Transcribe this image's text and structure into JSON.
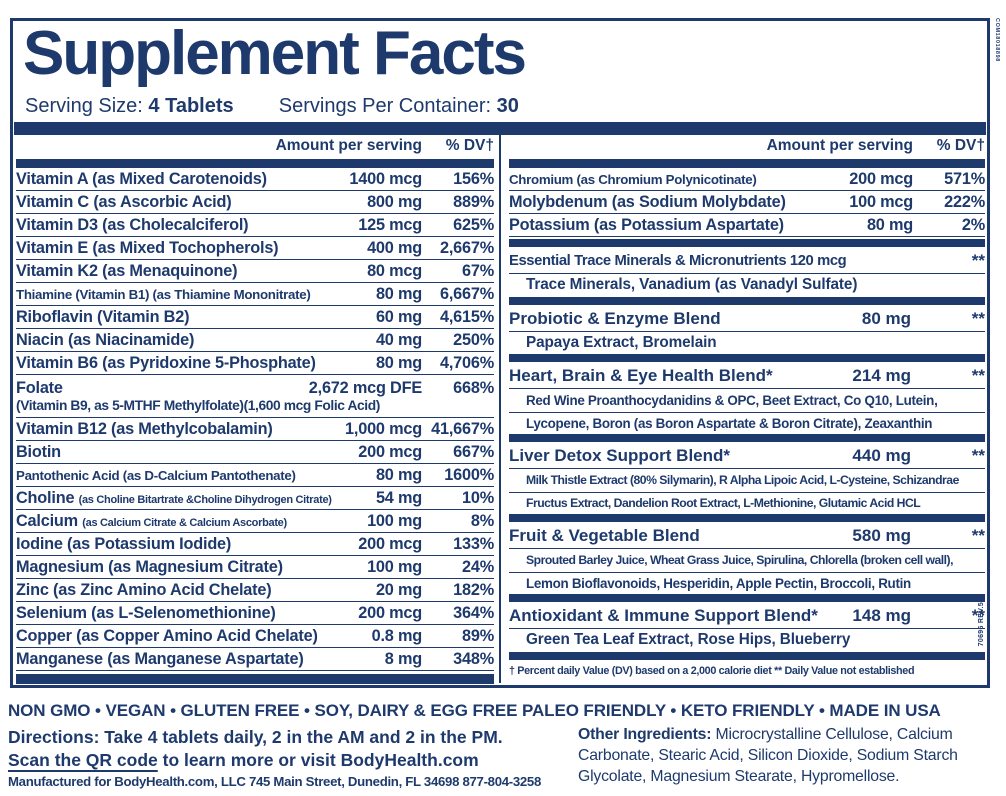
{
  "colors": {
    "navy": "#1e3a6d",
    "background": "#ffffff"
  },
  "header": {
    "title": "Supplement Facts",
    "serving_size_label": "Serving Size:",
    "serving_size_value": "4 Tablets",
    "servings_label": "Servings Per Container:",
    "servings_value": "30"
  },
  "table": {
    "amount_header": "Amount per serving",
    "dv_header": "% DV†",
    "left_rows": [
      {
        "name": "Vitamin A (as Mixed Carotenoids)",
        "amount": "1400 mcg",
        "dv": "156%"
      },
      {
        "name": "Vitamin C (as Ascorbic Acid)",
        "amount": "800 mg",
        "dv": "889%"
      },
      {
        "name": "Vitamin D3 (as Cholecalciferol)",
        "amount": "125 mcg",
        "dv": "625%"
      },
      {
        "name": "Vitamin E (as Mixed Tochopherols)",
        "amount": "400 mg",
        "dv": "2,667%"
      },
      {
        "name": "Vitamin K2 (as Menaquinone)",
        "amount": "80 mcg",
        "dv": "67%"
      },
      {
        "name": "Thiamine (Vitamin B1) (as Thiamine Mononitrate)",
        "amount": "80 mg",
        "dv": "6,667%",
        "fit": true
      },
      {
        "name": "Riboflavin (Vitamin B2)",
        "amount": "60 mg",
        "dv": "4,615%"
      },
      {
        "name": "Niacin (as Niacinamide)",
        "amount": "40 mg",
        "dv": "250%"
      },
      {
        "name": "Vitamin B6 (as Pyridoxine 5-Phosphate)",
        "amount": "80 mg",
        "dv": "4,706%"
      },
      {
        "name": "Folate",
        "name2": "(Vitamin B9, as 5-MTHF Methylfolate)(1,600 mcg Folic Acid)",
        "amount": "2,672 mcg DFE",
        "dv": "668%"
      },
      {
        "name": "Vitamin B12 (as Methylcobalamin)",
        "amount": "1,000 mcg",
        "dv": "41,667%"
      },
      {
        "name": "Biotin",
        "amount": "200 mcg",
        "dv": "667%"
      },
      {
        "name": "Pantothenic Acid (as D-Calcium Pantothenate)",
        "amount": "80 mg",
        "dv": "1600%",
        "fit": true
      },
      {
        "name": "Choline",
        "name_small": "(as Choline Bitartrate &Choline Dihydrogen Citrate)",
        "amount": "54 mg",
        "dv": "10%"
      },
      {
        "name": "Calcium",
        "name_small": "(as Calcium Citrate & Calcium Ascorbate)",
        "amount": "100 mg",
        "dv": "8%"
      },
      {
        "name": "Iodine (as Potassium Iodide)",
        "amount": "200 mcg",
        "dv": "133%"
      },
      {
        "name": "Magnesium (as Magnesium Citrate)",
        "amount": "100 mg",
        "dv": "24%"
      },
      {
        "name": "Zinc (as Zinc Amino Acid Chelate)",
        "amount": "20 mg",
        "dv": "182%"
      },
      {
        "name": "Selenium (as L-Selenomethionine)",
        "amount": "200 mcg",
        "dv": "364%"
      },
      {
        "name": "Copper (as Copper Amino Acid Chelate)",
        "amount": "0.8 mg",
        "dv": "89%"
      },
      {
        "name": "Manganese (as Manganese Aspartate)",
        "amount": "8 mg",
        "dv": "348%"
      }
    ],
    "right_rows": [
      {
        "name": "Chromium (as Chromium Polynicotinate)",
        "amount": "200 mcg",
        "dv": "571%",
        "fit": true
      },
      {
        "name": "Molybdenum (as Sodium Molybdate)",
        "amount": "100 mcg",
        "dv": "222%"
      },
      {
        "name": "Potassium (as Potassium Aspartate)",
        "amount": "80 mg",
        "dv": "2%"
      }
    ],
    "blends": [
      {
        "name": "Essential Trace Minerals & Micronutrients 120 mcg",
        "amount": "",
        "dv": "**",
        "fit": true,
        "sub": [
          {
            "text": "Trace Minerals, Vanadium (as Vanadyl Sulfate)",
            "size": ""
          }
        ]
      },
      {
        "name": "Probiotic & Enzyme Blend",
        "amount": "80 mg",
        "dv": "**",
        "sub": [
          {
            "text": "Papaya Extract, Bromelain",
            "size": ""
          }
        ]
      },
      {
        "name": "Heart, Brain & Eye Health Blend*",
        "amount": "214 mg",
        "dv": "**",
        "sub": [
          {
            "text": "Red Wine Proanthocydanidins & OPC, Beet Extract, Co Q10, Lutein,",
            "size": "small"
          },
          {
            "text": "Lycopene, Boron (as Boron Aspartate & Boron Citrate), Zeaxanthin",
            "size": "small"
          }
        ]
      },
      {
        "name": "Liver Detox Support Blend*",
        "amount": "440 mg",
        "dv": "**",
        "sub": [
          {
            "text": "Milk Thistle Extract (80% Silymarin), R Alpha Lipoic Acid, L-Cysteine, Schizandrae",
            "size": "xs"
          },
          {
            "text": "Fructus Extract, Dandelion Root Extract, L-Methionine, Glutamic Acid HCL",
            "size": "xs"
          }
        ]
      },
      {
        "name": "Fruit & Vegetable Blend",
        "amount": "580 mg",
        "dv": "**",
        "sub": [
          {
            "text": "Sprouted Barley Juice, Wheat Grass Juice, Spirulina, Chlorella (broken cell wall),",
            "size": "xs"
          },
          {
            "text": "Lemon Bioflavonoids, Hesperidin, Apple Pectin, Broccoli, Rutin",
            "size": "small"
          }
        ]
      },
      {
        "name": "Antioxidant & Immune Support Blend*",
        "amount": "148 mg",
        "dv": "**",
        "sub": [
          {
            "text": "Green Tea Leaf Extract, Rose Hips, Blueberry",
            "size": ""
          }
        ]
      }
    ],
    "footnote": "† Percent daily Value (DV) based on a 2,000 calorie diet ** Daily Value not established"
  },
  "side_codes": {
    "top": "COM18018898",
    "bottom": "70696 REV.5"
  },
  "footer": {
    "badges": "NON GMO • VEGAN • GLUTEN FREE • SOY, DAIRY & EGG FREE PALEO FRIENDLY • KETO FRIENDLY • MADE IN USA",
    "directions": "Directions: Take 4 tablets daily, 2 in the AM and 2 in the PM.",
    "scan_underlined": "Scan the QR code",
    "scan_rest": " to learn more or visit BodyHealth.com",
    "manufactured": "Manufactured for BodyHealth.com, LLC 745 Main Street, Dunedin, FL 34698 877-804-3258",
    "other_ingredients_label": "Other Ingredients:",
    "other_ingredients": " Microcrystalline Cellulose, Calcium Carbonate, Stearic Acid, Silicon Dioxide, Sodium Starch Glycolate, Magnesium Stearate, Hypromellose."
  }
}
